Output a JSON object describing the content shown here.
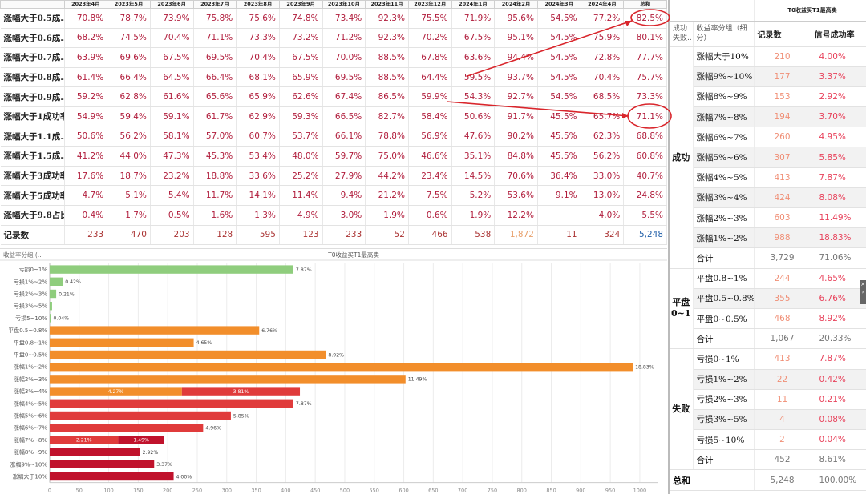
{
  "top_table": {
    "months": [
      "2023年4月",
      "2023年5月",
      "2023年6月",
      "2023年7月",
      "2023年8月",
      "2023年9月",
      "2023年10月",
      "2023年11月",
      "2023年12月",
      "2024年1月",
      "2024年2月",
      "2024年3月",
      "2024年4月",
      "总和"
    ],
    "rows": [
      {
        "label": "涨幅大于0.5成..",
        "values": [
          "70.8%",
          "78.7%",
          "73.9%",
          "75.8%",
          "75.6%",
          "74.8%",
          "73.4%",
          "92.3%",
          "75.5%",
          "71.9%",
          "95.6%",
          "54.5%",
          "77.2%",
          "82.5%"
        ]
      },
      {
        "label": "涨幅大于0.6成..",
        "values": [
          "68.2%",
          "74.5%",
          "70.4%",
          "71.1%",
          "73.3%",
          "73.2%",
          "71.2%",
          "92.3%",
          "70.2%",
          "67.5%",
          "95.1%",
          "54.5%",
          "75.9%",
          "80.1%"
        ]
      },
      {
        "label": "涨幅大于0.7成..",
        "values": [
          "63.9%",
          "69.6%",
          "67.5%",
          "69.5%",
          "70.4%",
          "67.5%",
          "70.0%",
          "88.5%",
          "67.8%",
          "63.6%",
          "94.4%",
          "54.5%",
          "72.8%",
          "77.7%"
        ]
      },
      {
        "label": "涨幅大于0.8成..",
        "values": [
          "61.4%",
          "66.4%",
          "64.5%",
          "66.4%",
          "68.1%",
          "65.9%",
          "69.5%",
          "88.5%",
          "64.4%",
          "59.5%",
          "93.7%",
          "54.5%",
          "70.4%",
          "75.7%"
        ]
      },
      {
        "label": "涨幅大于0.9成..",
        "values": [
          "59.2%",
          "62.8%",
          "61.6%",
          "65.6%",
          "65.9%",
          "62.6%",
          "67.4%",
          "86.5%",
          "59.9%",
          "54.3%",
          "92.7%",
          "54.5%",
          "68.5%",
          "73.3%"
        ]
      },
      {
        "label": "涨幅大于1成功率",
        "values": [
          "54.9%",
          "59.4%",
          "59.1%",
          "61.7%",
          "62.9%",
          "59.3%",
          "66.5%",
          "82.7%",
          "58.4%",
          "50.6%",
          "91.7%",
          "45.5%",
          "65.7%",
          "71.1%"
        ]
      },
      {
        "label": "涨幅大于1.1成..",
        "values": [
          "50.6%",
          "56.2%",
          "58.1%",
          "57.0%",
          "60.7%",
          "53.7%",
          "66.1%",
          "78.8%",
          "56.9%",
          "47.6%",
          "90.2%",
          "45.5%",
          "62.3%",
          "68.8%"
        ]
      },
      {
        "label": "涨幅大于1.5成..",
        "values": [
          "41.2%",
          "44.0%",
          "47.3%",
          "45.3%",
          "53.4%",
          "48.0%",
          "59.7%",
          "75.0%",
          "46.6%",
          "35.1%",
          "84.8%",
          "45.5%",
          "56.2%",
          "60.8%"
        ]
      },
      {
        "label": "涨幅大于3成功率",
        "values": [
          "17.6%",
          "18.7%",
          "23.2%",
          "18.8%",
          "33.6%",
          "25.2%",
          "27.9%",
          "44.2%",
          "23.4%",
          "14.5%",
          "70.6%",
          "36.4%",
          "33.0%",
          "40.7%"
        ]
      },
      {
        "label": "涨幅大于5成功率",
        "values": [
          "4.7%",
          "5.1%",
          "5.4%",
          "11.7%",
          "14.1%",
          "11.4%",
          "9.4%",
          "21.2%",
          "7.5%",
          "5.2%",
          "53.6%",
          "9.1%",
          "13.0%",
          "24.8%"
        ]
      },
      {
        "label": "涨幅大于9.8占比",
        "values": [
          "0.4%",
          "1.7%",
          "0.5%",
          "1.6%",
          "1.3%",
          "4.9%",
          "3.0%",
          "1.9%",
          "0.6%",
          "1.9%",
          "12.2%",
          "",
          "4.0%",
          "5.5%"
        ]
      }
    ],
    "count_row": {
      "label": "记录数",
      "values": [
        "233",
        "470",
        "203",
        "128",
        "595",
        "123",
        "233",
        "52",
        "466",
        "538",
        "1,872",
        "11",
        "324",
        "5,248"
      ]
    }
  },
  "chart": {
    "header_label": "收益率分组 (..",
    "title": "T0收益买T1最高卖",
    "xlabel": "记录数"
  },
  "chart_data": {
    "type": "bar",
    "orientation": "horizontal",
    "title": "T0收益买T1最高卖",
    "xlabel": "记录数",
    "xlim": [
      0,
      1030
    ],
    "xticks": [
      0,
      50,
      100,
      150,
      200,
      250,
      300,
      350,
      400,
      450,
      500,
      550,
      600,
      650,
      700,
      750,
      800,
      850,
      900,
      950,
      1000
    ],
    "grid": true,
    "categories": [
      "亏损0~1%",
      "亏损1%~2%",
      "亏损2%~3%",
      "亏损3%~5%",
      "亏损5~10%",
      "平盘0.5~0.8%",
      "平盘0.8~1%",
      "平盘0~0.5%",
      "涨幅1%~2%",
      "涨幅2%~3%",
      "涨幅3%~4%",
      "涨幅4%~5%",
      "涨幅5%~6%",
      "涨幅6%~7%",
      "涨幅7%~8%",
      "涨幅8%~9%",
      "涨幅9%~10%",
      "涨幅大于10%"
    ],
    "segments": [
      [
        {
          "value": 413,
          "color": "#8fcd7d",
          "label": "7.87%"
        }
      ],
      [
        {
          "value": 22,
          "color": "#8fcd7d",
          "label": "0.42%"
        }
      ],
      [
        {
          "value": 11,
          "color": "#8fcd7d",
          "label": "0.21%"
        }
      ],
      [
        {
          "value": 4,
          "color": "#8fcd7d",
          "label": ""
        }
      ],
      [
        {
          "value": 2,
          "color": "#8fcd7d",
          "label": "0.04%"
        }
      ],
      [
        {
          "value": 355,
          "color": "#f28e2b",
          "label": "6.76%"
        }
      ],
      [
        {
          "value": 244,
          "color": "#f28e2b",
          "label": "4.65%"
        }
      ],
      [
        {
          "value": 468,
          "color": "#f28e2b",
          "label": "8.92%"
        }
      ],
      [
        {
          "value": 988,
          "color": "#f28e2b",
          "label": "18.83%"
        }
      ],
      [
        {
          "value": 603,
          "color": "#f28e2b",
          "label": "11.49%"
        }
      ],
      [
        {
          "value": 224,
          "color": "#f28e2b",
          "label": "4.27%",
          "inside": true
        },
        {
          "value": 200,
          "color": "#e03b3b",
          "label": "3.81%",
          "inside": true
        }
      ],
      [
        {
          "value": 413,
          "color": "#e03b3b",
          "label": "7.87%"
        }
      ],
      [
        {
          "value": 307,
          "color": "#e03b3b",
          "label": "5.85%"
        }
      ],
      [
        {
          "value": 260,
          "color": "#e03b3b",
          "label": "4.96%"
        }
      ],
      [
        {
          "value": 116,
          "color": "#e03b3b",
          "label": "2.21%",
          "inside": true
        },
        {
          "value": 78,
          "color": "#c0122c",
          "label": "1.49%",
          "inside": true
        }
      ],
      [
        {
          "value": 153,
          "color": "#c0122c",
          "label": "2.92%"
        }
      ],
      [
        {
          "value": 177,
          "color": "#c0122c",
          "label": "3.37%"
        }
      ],
      [
        {
          "value": 210,
          "color": "#c0122c",
          "label": "4.00%"
        }
      ]
    ]
  },
  "right_table": {
    "title": "T0收益买T1最高卖",
    "col1": "成功\n失败..",
    "col2": "收益率分组（细分）",
    "col3": "记录数",
    "col4": "信号成功率",
    "groups": [
      {
        "name": "成功",
        "rows": [
          {
            "sub": "涨幅大于10%",
            "n": "210",
            "p": "4.00%"
          },
          {
            "sub": "涨幅9%~10%",
            "n": "177",
            "p": "3.37%"
          },
          {
            "sub": "涨幅8%~9%",
            "n": "153",
            "p": "2.92%"
          },
          {
            "sub": "涨幅7%~8%",
            "n": "194",
            "p": "3.70%"
          },
          {
            "sub": "涨幅6%~7%",
            "n": "260",
            "p": "4.95%"
          },
          {
            "sub": "涨幅5%~6%",
            "n": "307",
            "p": "5.85%"
          },
          {
            "sub": "涨幅4%~5%",
            "n": "413",
            "p": "7.87%"
          },
          {
            "sub": "涨幅3%~4%",
            "n": "424",
            "p": "8.08%"
          },
          {
            "sub": "涨幅2%~3%",
            "n": "603",
            "p": "11.49%"
          },
          {
            "sub": "涨幅1%~2%",
            "n": "988",
            "p": "18.83%"
          }
        ],
        "total": {
          "sub": "合计",
          "n": "3,729",
          "p": "71.06%"
        }
      },
      {
        "name": "平盘\n0~1",
        "rows": [
          {
            "sub": "平盘0.8~1%",
            "n": "244",
            "p": "4.65%"
          },
          {
            "sub": "平盘0.5~0.8%",
            "n": "355",
            "p": "6.76%"
          },
          {
            "sub": "平盘0~0.5%",
            "n": "468",
            "p": "8.92%"
          }
        ],
        "total": {
          "sub": "合计",
          "n": "1,067",
          "p": "20.33%"
        }
      },
      {
        "name": "失败",
        "rows": [
          {
            "sub": "亏损0~1%",
            "n": "413",
            "p": "7.87%"
          },
          {
            "sub": "亏损1%~2%",
            "n": "22",
            "p": "0.42%"
          },
          {
            "sub": "亏损2%~3%",
            "n": "11",
            "p": "0.21%"
          },
          {
            "sub": "亏损3%~5%",
            "n": "4",
            "p": "0.08%"
          },
          {
            "sub": "亏损5~10%",
            "n": "2",
            "p": "0.04%"
          }
        ],
        "total": {
          "sub": "合计",
          "n": "452",
          "p": "8.61%"
        }
      }
    ],
    "grand_total": {
      "label": "总和",
      "n": "5,248",
      "p": "100.00%"
    }
  },
  "colors": {
    "annotation": "#d9262c"
  }
}
